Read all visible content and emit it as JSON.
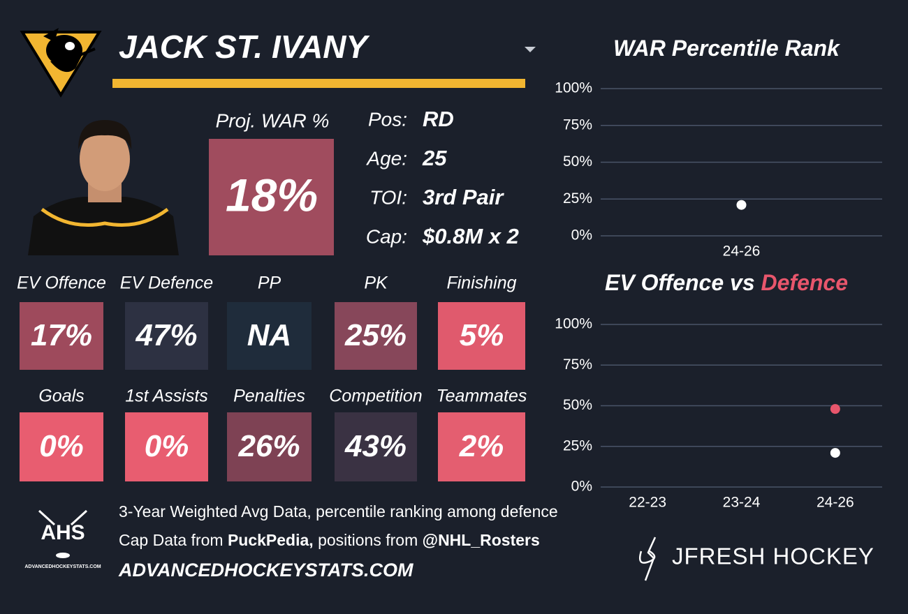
{
  "card": {
    "name": "JACK ST. IVANY",
    "headline_label": "Proj. WAR %",
    "headline_value": "18%",
    "headline_color": "#a04c5e",
    "info": [
      {
        "label": "Pos:",
        "value": "RD"
      },
      {
        "label": "Age:",
        "value": "25"
      },
      {
        "label": "TOI:",
        "value": "3rd Pair"
      },
      {
        "label": "Cap:",
        "value": "$0.8M x 2"
      }
    ],
    "tiles": [
      {
        "label": "EV Offence",
        "value": "17%",
        "color": "#9e4a5c"
      },
      {
        "label": "EV Defence",
        "value": "47%",
        "color": "#2d3142"
      },
      {
        "label": "PP",
        "value": "NA",
        "color": "#1f2c3b"
      },
      {
        "label": "PK",
        "value": "25%",
        "color": "#87475a"
      },
      {
        "label": "Finishing",
        "value": "5%",
        "color": "#e05a6d"
      },
      {
        "label": "Goals",
        "value": "0%",
        "color": "#e85d70"
      },
      {
        "label": "1st Assists",
        "value": "0%",
        "color": "#e85d70"
      },
      {
        "label": "Penalties",
        "value": "26%",
        "color": "#7e4254"
      },
      {
        "label": "Competition",
        "value": "43%",
        "color": "#3a3243"
      },
      {
        "label": "Teammates",
        "value": "2%",
        "color": "#e45e70"
      }
    ],
    "footer": {
      "line1": "3-Year Weighted Avg Data, percentile ranking among defence",
      "line2": [
        "Cap Data from ",
        "PuckPedia,",
        " positions from ",
        "@NHL_Rosters"
      ],
      "line3": "ADVANCEDHOCKEYSTATS.COM"
    },
    "logo_text": "AHS",
    "logo_subtext": "ADVANCEDHOCKEYSTATS.COM",
    "brand": "JFRESH HOCKEY"
  },
  "chart_data": [
    {
      "type": "scatter",
      "title": "WAR Percentile Rank",
      "categories": [
        "24-26"
      ],
      "series": [
        {
          "color": "#ffffff",
          "values": [
            21
          ]
        }
      ],
      "ylim": [
        0,
        100
      ],
      "yticks": [
        {
          "value": 0,
          "label": "0%"
        },
        {
          "value": 25,
          "label": "25%"
        },
        {
          "value": 50,
          "label": "50%"
        },
        {
          "value": 75,
          "label": "75%"
        },
        {
          "value": 100,
          "label": "100%"
        }
      ],
      "grid": true,
      "grid_color": "#4a5468"
    },
    {
      "type": "scatter",
      "title": "EV Offence vs",
      "title_highlight": "Defence",
      "title_highlight_color": "#e8566c",
      "categories": [
        "22-23",
        "23-24",
        "24-26"
      ],
      "series": [
        {
          "color": "#ffffff",
          "values": [
            null,
            null,
            21
          ]
        },
        {
          "color": "#e8566c",
          "values": [
            null,
            null,
            48
          ]
        }
      ],
      "ylim": [
        0,
        100
      ],
      "yticks": [
        {
          "value": 0,
          "label": "0%"
        },
        {
          "value": 25,
          "label": "25%"
        },
        {
          "value": 50,
          "label": "50%"
        },
        {
          "value": 75,
          "label": "75%"
        },
        {
          "value": 100,
          "label": "100%"
        }
      ],
      "grid": true,
      "grid_color": "#4a5468"
    }
  ]
}
